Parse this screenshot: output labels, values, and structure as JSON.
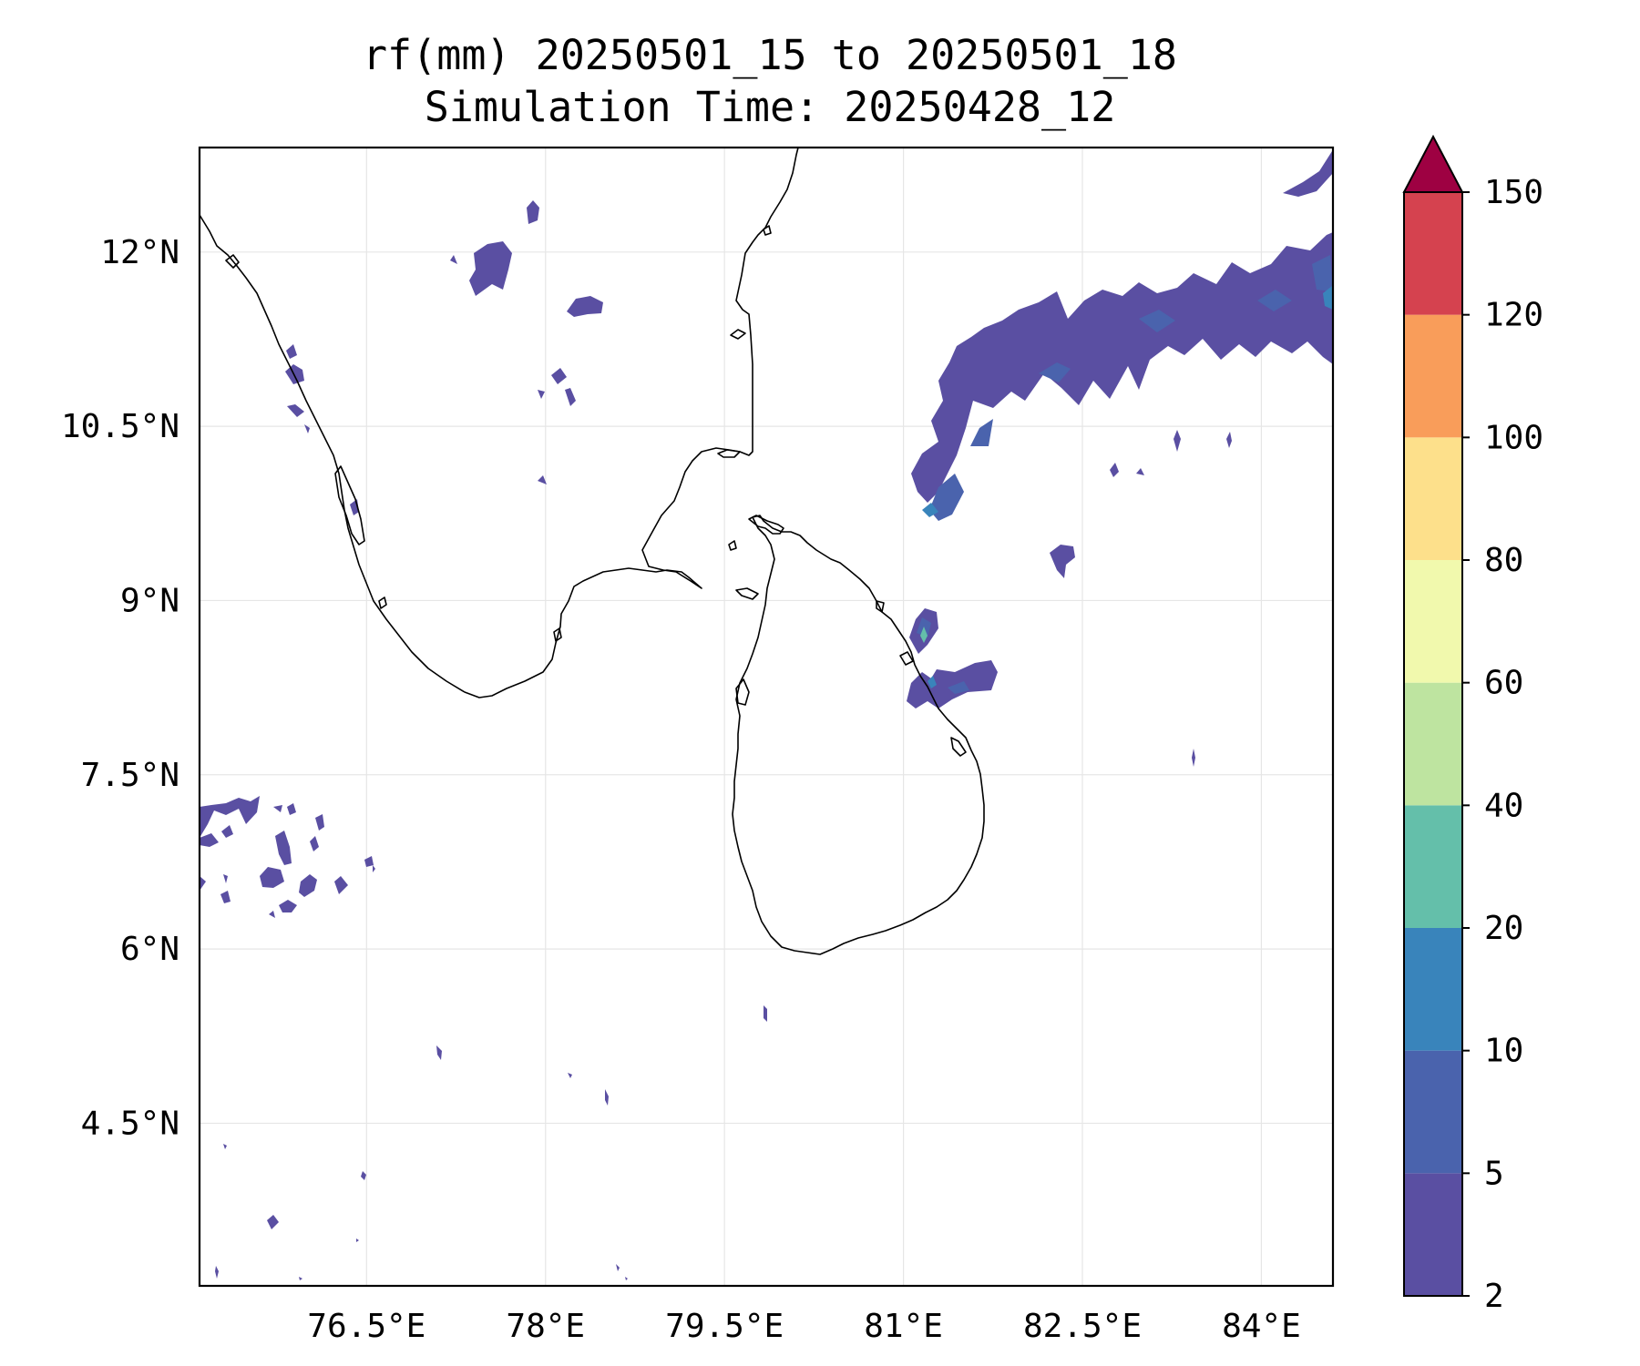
{
  "title": {
    "line1": "rf(mm) 20250501_15 to 20250501_18",
    "line2": "Simulation Time: 20250428_12"
  },
  "map": {
    "lon_range": [
      75.1,
      84.6
    ],
    "lat_range": [
      3.1,
      12.9
    ],
    "x_ticks": [
      {
        "value": 76.5,
        "label": "76.5°E"
      },
      {
        "value": 78.0,
        "label": "78°E"
      },
      {
        "value": 79.5,
        "label": "79.5°E"
      },
      {
        "value": 81.0,
        "label": "81°E"
      },
      {
        "value": 82.5,
        "label": "82.5°E"
      },
      {
        "value": 84.0,
        "label": "84°E"
      }
    ],
    "y_ticks": [
      {
        "value": 12.0,
        "label": "12°N"
      },
      {
        "value": 10.5,
        "label": "10.5°N"
      },
      {
        "value": 9.0,
        "label": "9°N"
      },
      {
        "value": 7.5,
        "label": "7.5°N"
      },
      {
        "value": 6.0,
        "label": "6°N"
      },
      {
        "value": 4.5,
        "label": "4.5°N"
      }
    ],
    "gridlines": true,
    "coastline_color": "#000000"
  },
  "colorbar": {
    "levels": [
      {
        "label": "2",
        "color": "#5a4fa2"
      },
      {
        "label": "5",
        "color": "#4a63ad"
      },
      {
        "label": "10",
        "color": "#3984bb"
      },
      {
        "label": "20",
        "color": "#64bfaa"
      },
      {
        "label": "40",
        "color": "#bee4a0"
      },
      {
        "label": "60",
        "color": "#f1f9ad"
      },
      {
        "label": "80",
        "color": "#fde08b"
      },
      {
        "label": "100",
        "color": "#f99d5a"
      },
      {
        "label": "120",
        "color": "#d5424f"
      },
      {
        "label": "150",
        "color": ""
      }
    ],
    "extend_color": "#9e0142",
    "extend": "max"
  }
}
